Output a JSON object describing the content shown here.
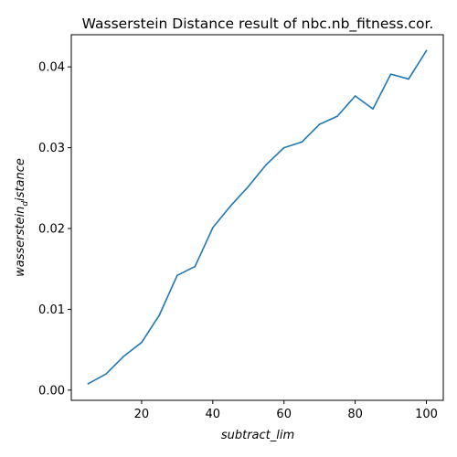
{
  "chart_data": {
    "type": "line",
    "title": "Wasserstein Distance result of nbc.nb_fitness.cor.",
    "xlabel": "subtract_lim",
    "ylabel": "wassersteindistance",
    "xlim": [
      0.25,
      104.75
    ],
    "ylim": [
      -0.00126,
      0.04398
    ],
    "x_ticks": [
      20,
      40,
      60,
      80,
      100
    ],
    "x_tick_labels": [
      "20",
      "40",
      "60",
      "80",
      "100"
    ],
    "y_ticks": [
      0.0,
      0.01,
      0.02,
      0.03,
      0.04
    ],
    "y_tick_labels": [
      "0.00",
      "0.01",
      "0.02",
      "0.03",
      "0.04"
    ],
    "grid": false,
    "series": [
      {
        "color": "#1f77b4",
        "x": [
          5,
          10,
          15,
          20,
          25,
          30,
          35,
          40,
          45,
          50,
          55,
          60,
          65,
          70,
          75,
          80,
          85,
          90,
          95,
          100
        ],
        "y": [
          0.0008,
          0.002,
          0.0042,
          0.0059,
          0.0093,
          0.0142,
          0.0153,
          0.0201,
          0.0228,
          0.0252,
          0.0279,
          0.03,
          0.0307,
          0.0329,
          0.0339,
          0.0364,
          0.0348,
          0.0391,
          0.0385,
          0.042
        ]
      }
    ]
  }
}
